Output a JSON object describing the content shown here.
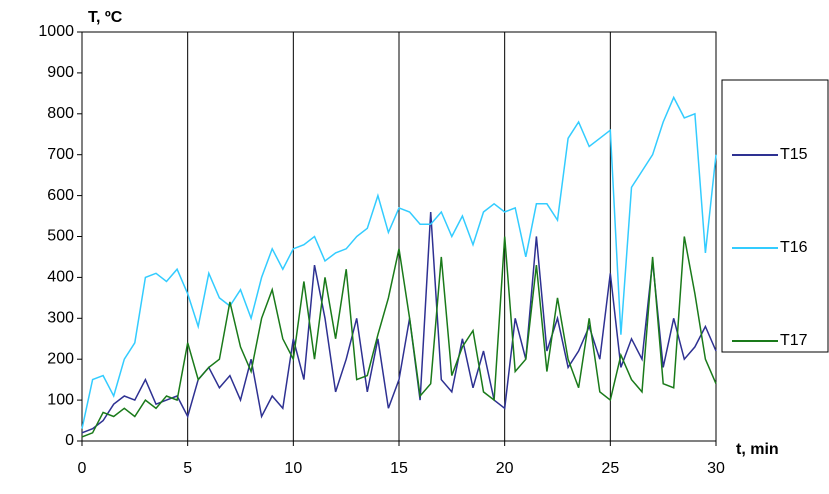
{
  "chart_data": {
    "type": "line",
    "y_label": "T, ºC",
    "x_label": "t, min",
    "x": [
      0,
      0.5,
      1,
      1.5,
      2,
      2.5,
      3,
      3.5,
      4,
      4.5,
      5,
      5.5,
      6,
      6.5,
      7,
      7.5,
      8,
      8.5,
      9,
      9.5,
      10,
      10.5,
      11,
      11.5,
      12,
      12.5,
      13,
      13.5,
      14,
      14.5,
      15,
      15.5,
      16,
      16.5,
      17,
      17.5,
      18,
      18.5,
      19,
      19.5,
      20,
      20.5,
      21,
      21.5,
      22,
      22.5,
      23,
      23.5,
      24,
      24.5,
      25,
      25.5,
      26,
      26.5,
      27,
      27.5,
      28,
      28.5,
      29,
      29.5,
      30
    ],
    "series": [
      {
        "name": "T15",
        "color": "#2e3192",
        "values": [
          20,
          30,
          50,
          90,
          110,
          100,
          150,
          90,
          100,
          110,
          60,
          150,
          180,
          130,
          160,
          100,
          200,
          60,
          110,
          80,
          250,
          150,
          430,
          300,
          120,
          200,
          300,
          120,
          250,
          80,
          150,
          300,
          100,
          560,
          150,
          120,
          250,
          130,
          220,
          100,
          80,
          300,
          200,
          500,
          220,
          300,
          180,
          220,
          280,
          200,
          410,
          180,
          250,
          200,
          440,
          180,
          300,
          200,
          230,
          280,
          220
        ]
      },
      {
        "name": "T16",
        "color": "#33ccff",
        "values": [
          30,
          150,
          160,
          110,
          200,
          240,
          400,
          410,
          390,
          420,
          360,
          280,
          410,
          350,
          330,
          370,
          300,
          400,
          470,
          420,
          470,
          480,
          500,
          440,
          460,
          470,
          500,
          520,
          600,
          510,
          570,
          560,
          530,
          530,
          560,
          500,
          550,
          480,
          560,
          580,
          560,
          570,
          450,
          580,
          580,
          540,
          740,
          780,
          720,
          740,
          760,
          260,
          620,
          660,
          700,
          780,
          840,
          790,
          800,
          460,
          700
        ]
      },
      {
        "name": "T17",
        "color": "#1a7a1a",
        "values": [
          10,
          20,
          70,
          60,
          80,
          60,
          100,
          80,
          110,
          100,
          240,
          150,
          180,
          200,
          340,
          230,
          170,
          300,
          370,
          250,
          200,
          390,
          200,
          400,
          250,
          420,
          150,
          160,
          260,
          350,
          470,
          300,
          110,
          140,
          450,
          160,
          230,
          270,
          120,
          100,
          500,
          170,
          200,
          430,
          170,
          350,
          200,
          130,
          300,
          120,
          100,
          210,
          150,
          120,
          450,
          140,
          130,
          500,
          360,
          200,
          140
        ]
      }
    ],
    "xlim": [
      0,
      30
    ],
    "xticks": [
      0,
      5,
      10,
      15,
      20,
      25,
      30
    ],
    "ylim": [
      0,
      1000
    ],
    "yticks": [
      0,
      100,
      200,
      300,
      400,
      500,
      600,
      700,
      800,
      900,
      1000
    ],
    "grid": true,
    "legend": "right"
  }
}
